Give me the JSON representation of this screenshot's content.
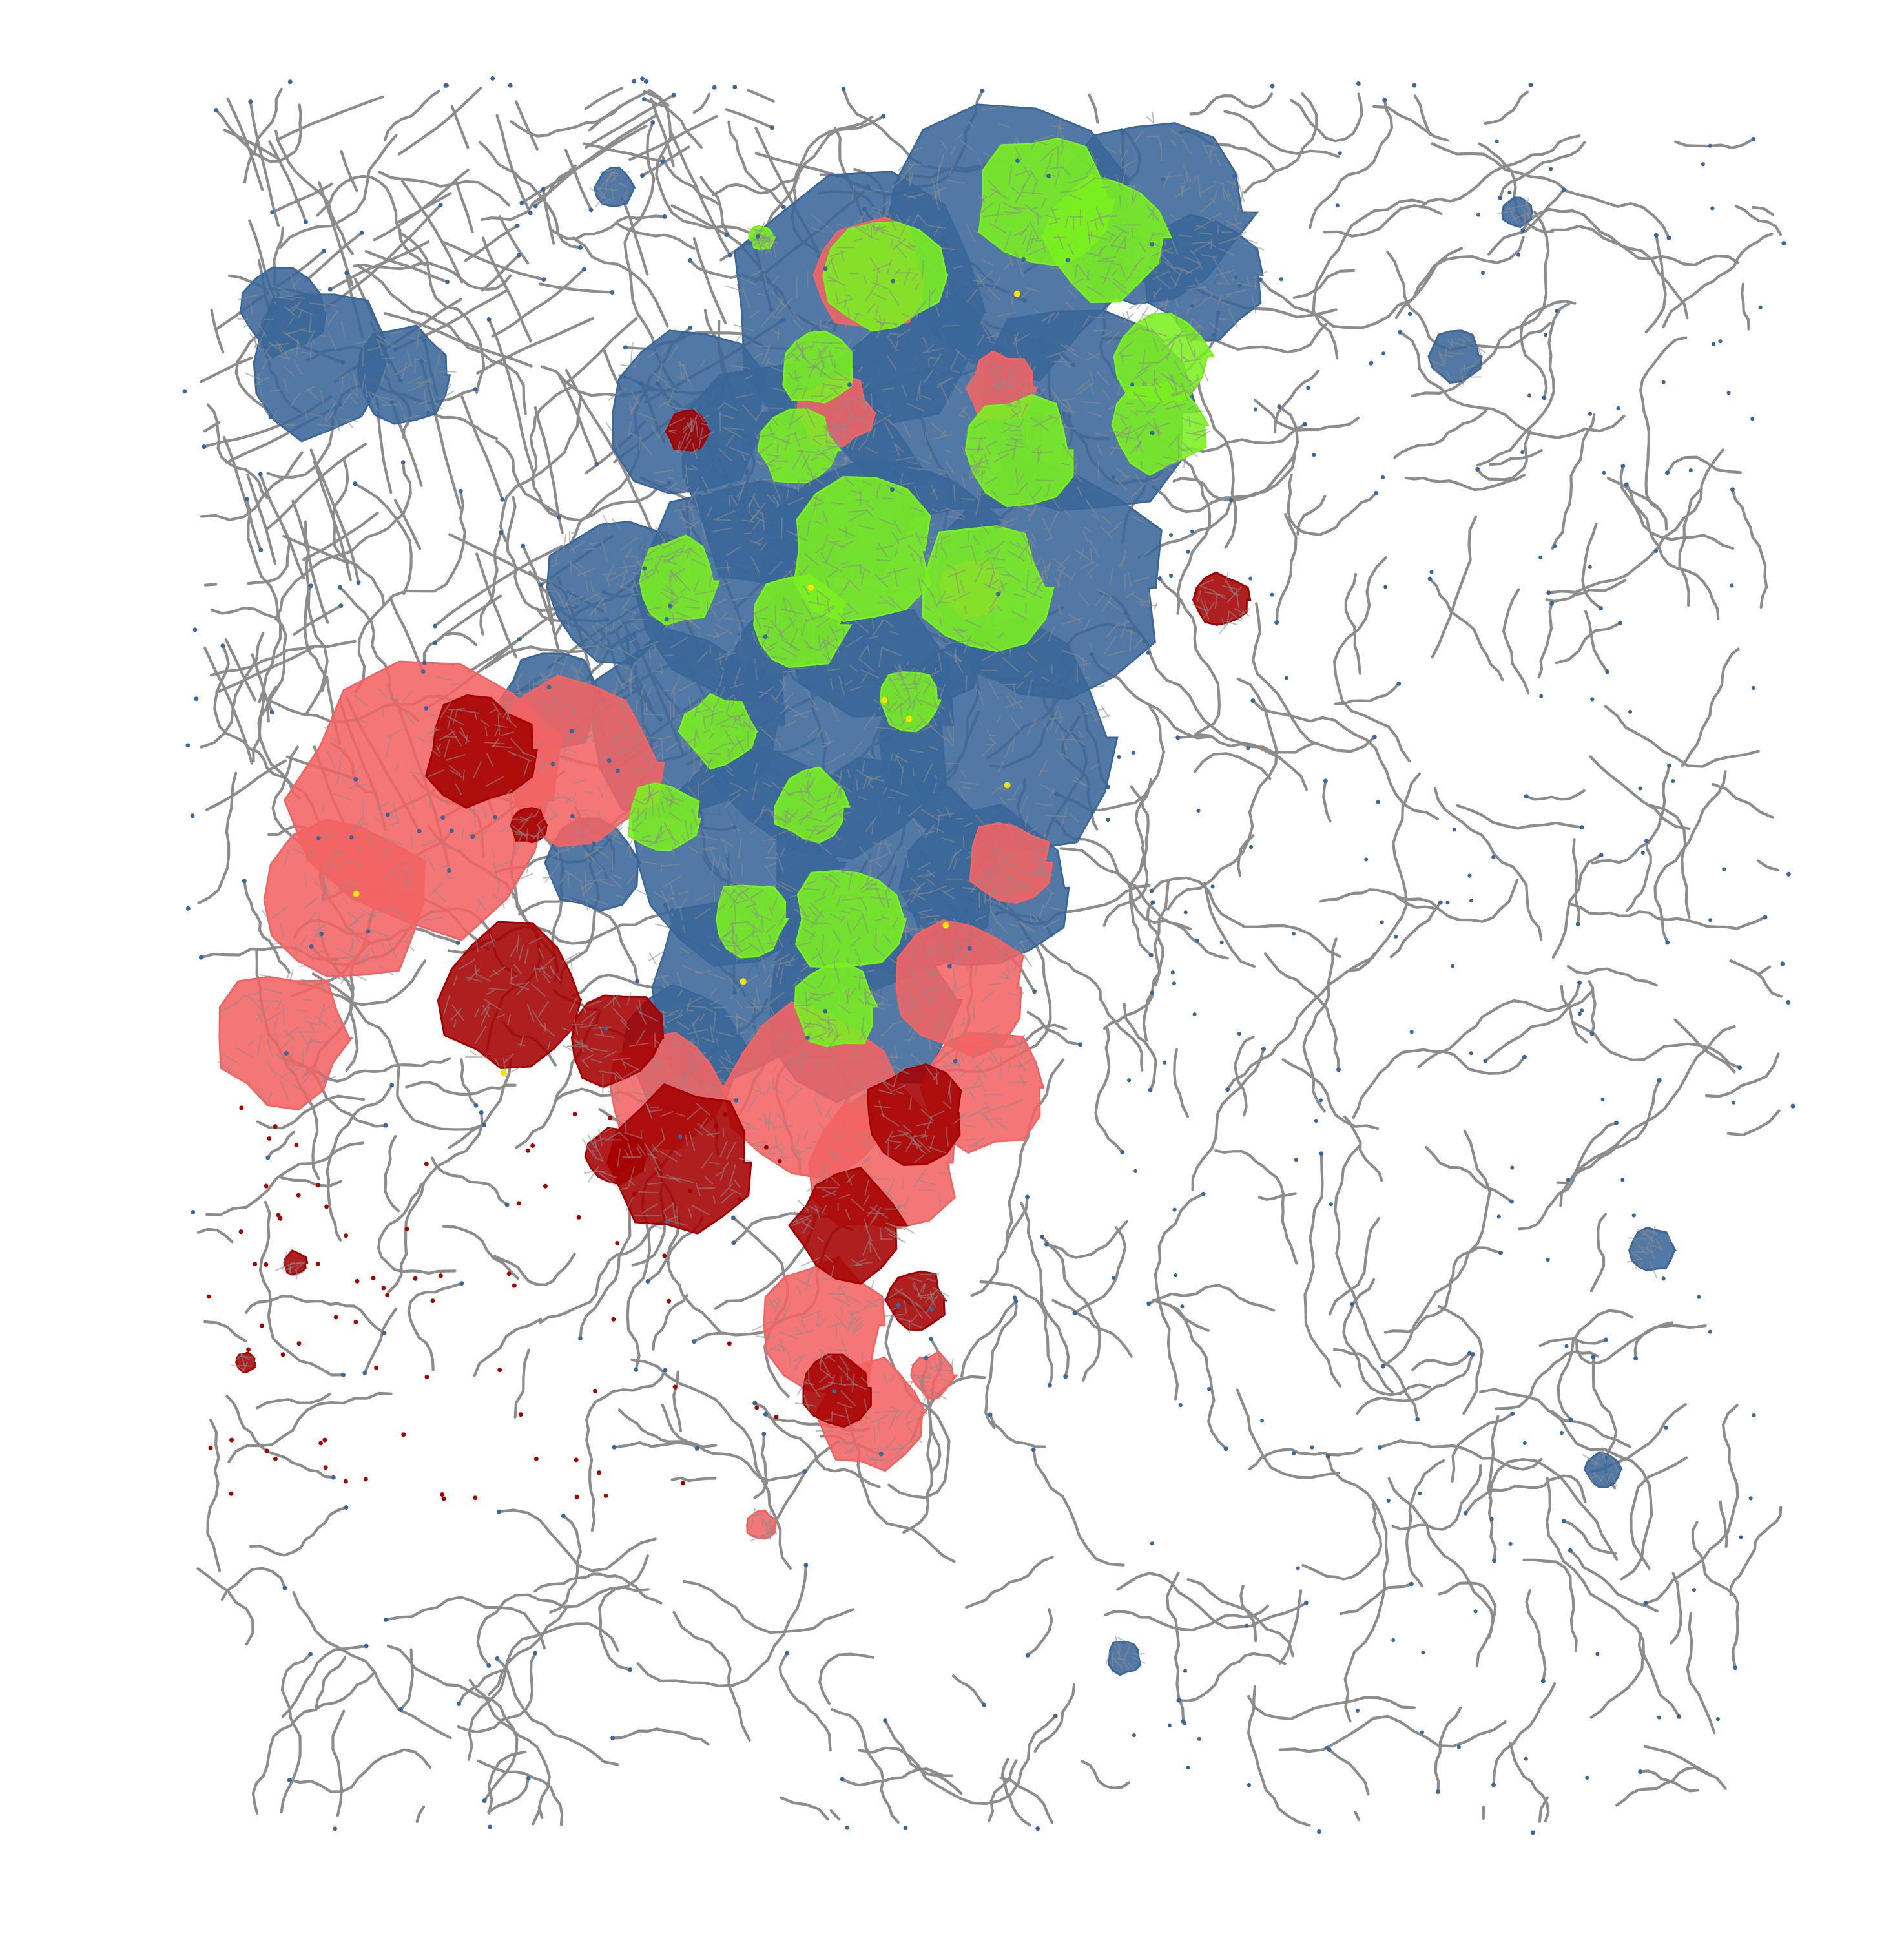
{
  "map": {
    "kind": "street-network accessibility map",
    "background": "#ffffff",
    "text_labels": [],
    "colors": {
      "road": "#8c8c8c",
      "node_low_density": "#3a6699",
      "cluster_green": "#7af01f",
      "cluster_light_red": "#f26363",
      "cluster_dark_red": "#a50000",
      "highlight_yellow": "#f2e600"
    },
    "layers": [
      {
        "name": "road-network",
        "color_key": "road"
      },
      {
        "name": "blue-urban-core",
        "color_key": "node_low_density"
      },
      {
        "name": "green-clusters",
        "color_key": "cluster_green"
      },
      {
        "name": "light-red-clusters",
        "color_key": "cluster_light_red"
      },
      {
        "name": "dark-red-clusters",
        "color_key": "cluster_dark_red"
      },
      {
        "name": "yellow-points",
        "color_key": "highlight_yellow"
      }
    ]
  }
}
